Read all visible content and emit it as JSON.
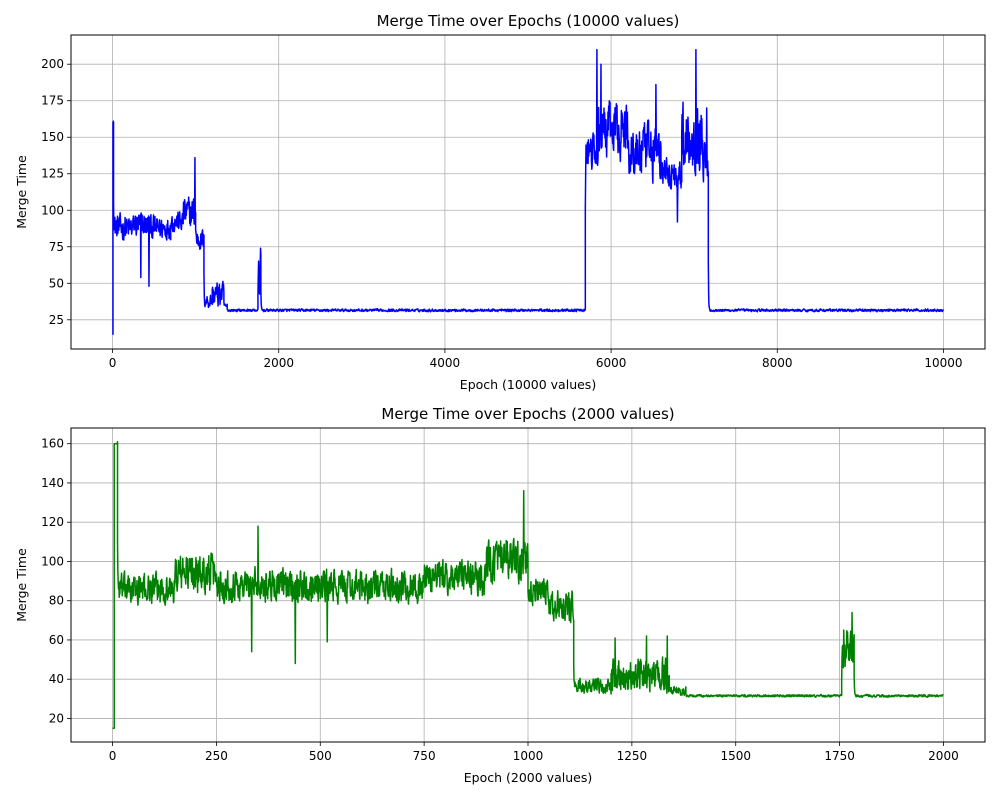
{
  "chart_data": [
    {
      "type": "line",
      "title": "Merge Time over Epochs (10000 values)",
      "xlabel": "Epoch (10000 values)",
      "ylabel": "Merge Time",
      "xlim": [
        -500,
        10500
      ],
      "ylim": [
        5,
        220
      ],
      "xticks": [
        0,
        2000,
        4000,
        6000,
        8000,
        10000
      ],
      "yticks": [
        25,
        50,
        75,
        100,
        125,
        150,
        175,
        200
      ],
      "grid": true,
      "color": "#0000ff",
      "series": [
        {
          "segments": [
            {
              "from": 0,
              "to": 5,
              "base": 15,
              "amp": 0,
              "start_value": 15
            },
            {
              "from": 5,
              "to": 12,
              "base": 160,
              "amp": 0
            },
            {
              "from": 12,
              "to": 250,
              "base": 88,
              "amp": 12
            },
            {
              "from": 250,
              "to": 450,
              "base": 90,
              "amp": 12
            },
            {
              "from": 450,
              "to": 700,
              "base": 88,
              "amp": 11
            },
            {
              "from": 700,
              "to": 850,
              "base": 92,
              "amp": 10
            },
            {
              "from": 850,
              "to": 1000,
              "base": 98,
              "amp": 15
            },
            {
              "from": 1000,
              "to": 1100,
              "base": 80,
              "amp": 10
            },
            {
              "from": 1100,
              "to": 1200,
              "base": 38,
              "amp": 7
            },
            {
              "from": 1200,
              "to": 1340,
              "base": 42,
              "amp": 12
            },
            {
              "from": 1340,
              "to": 1380,
              "base": 34,
              "amp": 3
            },
            {
              "from": 1380,
              "to": 1750,
              "base": 31.5,
              "amp": 1.2
            },
            {
              "from": 1750,
              "to": 1785,
              "base": 55,
              "amp": 18
            },
            {
              "from": 1785,
              "to": 5690,
              "base": 31.5,
              "amp": 1.2
            },
            {
              "from": 5690,
              "to": 5850,
              "base": 140,
              "amp": 18
            },
            {
              "from": 5850,
              "to": 6200,
              "base": 155,
              "amp": 25
            },
            {
              "from": 6200,
              "to": 6600,
              "base": 140,
              "amp": 25
            },
            {
              "from": 6600,
              "to": 6850,
              "base": 125,
              "amp": 15
            },
            {
              "from": 6850,
              "to": 7100,
              "base": 150,
              "amp": 30
            },
            {
              "from": 7100,
              "to": 7170,
              "base": 135,
              "amp": 20
            },
            {
              "from": 7170,
              "to": 10000,
              "base": 31.5,
              "amp": 1.2
            }
          ],
          "spikes": [
            {
              "x": 10,
              "y": 161
            },
            {
              "x": 340,
              "y": 54
            },
            {
              "x": 440,
              "y": 48
            },
            {
              "x": 990,
              "y": 136
            },
            {
              "x": 1780,
              "y": 74
            },
            {
              "x": 5830,
              "y": 210
            },
            {
              "x": 5880,
              "y": 200
            },
            {
              "x": 6540,
              "y": 186
            },
            {
              "x": 6800,
              "y": 92
            },
            {
              "x": 7020,
              "y": 210
            },
            {
              "x": 7150,
              "y": 170
            }
          ]
        }
      ]
    },
    {
      "type": "line",
      "title": "Merge Time over Epochs (2000 values)",
      "xlabel": "Epoch (2000 values)",
      "ylabel": "Merge Time",
      "xlim": [
        -100,
        2100
      ],
      "ylim": [
        8,
        168
      ],
      "xticks": [
        0,
        250,
        500,
        750,
        1000,
        1250,
        1500,
        1750,
        2000
      ],
      "yticks": [
        20,
        40,
        60,
        80,
        100,
        120,
        140,
        160
      ],
      "grid": true,
      "color": "#008000",
      "series": [
        {
          "segments": [
            {
              "from": 0,
              "to": 4,
              "base": 15,
              "amp": 0,
              "start_value": 15
            },
            {
              "from": 4,
              "to": 12,
              "base": 160,
              "amp": 0
            },
            {
              "from": 12,
              "to": 150,
              "base": 86,
              "amp": 10
            },
            {
              "from": 150,
              "to": 250,
              "base": 94,
              "amp": 13
            },
            {
              "from": 250,
              "to": 500,
              "base": 88,
              "amp": 11
            },
            {
              "from": 500,
              "to": 750,
              "base": 87,
              "amp": 11
            },
            {
              "from": 750,
              "to": 900,
              "base": 92,
              "amp": 12
            },
            {
              "from": 900,
              "to": 1000,
              "base": 100,
              "amp": 14
            },
            {
              "from": 1000,
              "to": 1050,
              "base": 84,
              "amp": 9
            },
            {
              "from": 1050,
              "to": 1110,
              "base": 77,
              "amp": 10
            },
            {
              "from": 1110,
              "to": 1200,
              "base": 36,
              "amp": 5
            },
            {
              "from": 1200,
              "to": 1340,
              "base": 42,
              "amp": 12
            },
            {
              "from": 1340,
              "to": 1380,
              "base": 34,
              "amp": 3
            },
            {
              "from": 1380,
              "to": 1755,
              "base": 31.5,
              "amp": 0.8
            },
            {
              "from": 1755,
              "to": 1785,
              "base": 55,
              "amp": 15
            },
            {
              "from": 1785,
              "to": 2000,
              "base": 31.5,
              "amp": 0.8
            }
          ],
          "spikes": [
            {
              "x": 12,
              "y": 161
            },
            {
              "x": 335,
              "y": 54
            },
            {
              "x": 350,
              "y": 118
            },
            {
              "x": 440,
              "y": 48
            },
            {
              "x": 517,
              "y": 59
            },
            {
              "x": 990,
              "y": 136
            },
            {
              "x": 1210,
              "y": 61
            },
            {
              "x": 1285,
              "y": 62
            },
            {
              "x": 1335,
              "y": 62
            },
            {
              "x": 1760,
              "y": 65
            },
            {
              "x": 1780,
              "y": 74
            }
          ]
        }
      ]
    }
  ]
}
